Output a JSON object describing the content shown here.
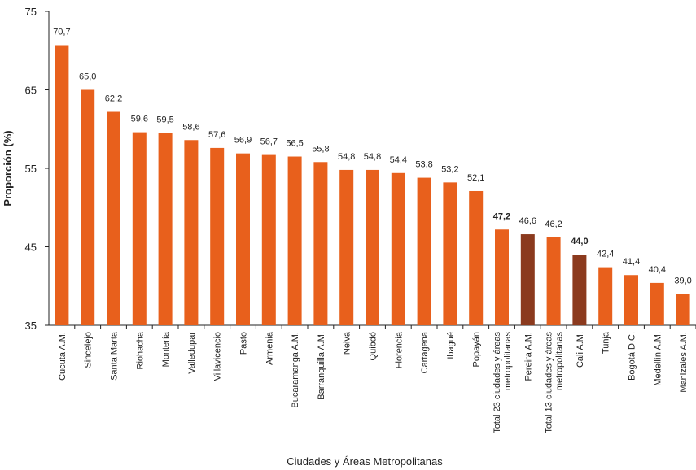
{
  "chart_data": {
    "type": "bar",
    "title": "",
    "xlabel": "Ciudades y Áreas Metropolitanas",
    "ylabel": "Proporción (%)",
    "ylim": [
      35,
      75
    ],
    "yticks": [
      35,
      45,
      55,
      65,
      75
    ],
    "grid": false,
    "legend": "none",
    "categories": [
      [
        "Cúcuta A.M."
      ],
      [
        "Sincelejo"
      ],
      [
        "Santa Marta"
      ],
      [
        "Riohacha"
      ],
      [
        "Montería"
      ],
      [
        "Valledupar"
      ],
      [
        "Villavicencio"
      ],
      [
        "Pasto"
      ],
      [
        "Armenia"
      ],
      [
        "Bucaramanga A.M."
      ],
      [
        "Barranquilla A.M."
      ],
      [
        "Neiva"
      ],
      [
        "Quibdó"
      ],
      [
        "Florencia"
      ],
      [
        "Cartagena"
      ],
      [
        "Ibagué"
      ],
      [
        "Popayán"
      ],
      [
        "Total 23 ciudades y áreas",
        "metropolitanas"
      ],
      [
        "Pereira A.M."
      ],
      [
        "Total 13 ciudades y áreas",
        "metropolitanas"
      ],
      [
        "Cali A.M."
      ],
      [
        "Tunja"
      ],
      [
        "Bogotá D.C."
      ],
      [
        "Medellín A.M."
      ],
      [
        "Manizales A.M."
      ]
    ],
    "values": [
      70.7,
      65.0,
      62.2,
      59.6,
      59.5,
      58.6,
      57.6,
      56.9,
      56.7,
      56.5,
      55.8,
      54.8,
      54.8,
      54.4,
      53.8,
      53.2,
      52.1,
      47.2,
      46.6,
      46.2,
      44.0,
      42.4,
      41.4,
      40.4,
      39.0
    ],
    "value_labels": [
      "70,7",
      "65,0",
      "62,2",
      "59,6",
      "59,5",
      "58,6",
      "57,6",
      "56,9",
      "56,7",
      "56,5",
      "55,8",
      "54,8",
      "54,8",
      "54,4",
      "53,8",
      "53,2",
      "52,1",
      "47,2",
      "46,6",
      "46,2",
      "44,0",
      "42,4",
      "41,4",
      "40,4",
      "39,0"
    ],
    "bold_labels": [
      17,
      20
    ],
    "highlight_indices": [
      18,
      20
    ],
    "colors": {
      "bar": "#E8601C",
      "highlight": "#8B3A1E",
      "axis": "#222222"
    }
  }
}
